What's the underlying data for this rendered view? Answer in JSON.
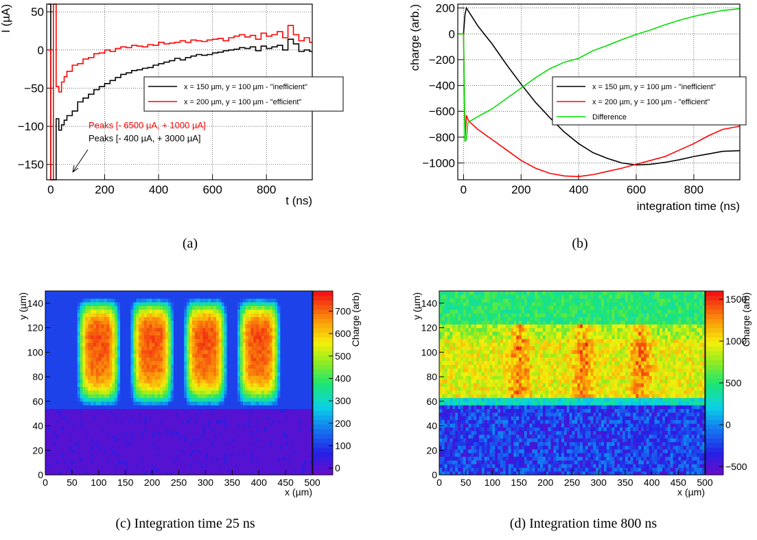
{
  "captions": {
    "a": "(a)",
    "b": "(b)",
    "c": "(c) Integration time 25 ns",
    "d": "(d) Integration time 800 ns"
  },
  "chart_data": [
    {
      "id": "a",
      "type": "line",
      "title": "",
      "xlabel": "t (ns)",
      "ylabel": "I (µA)",
      "xlim": [
        -15,
        970
      ],
      "ylim": [
        -170,
        60
      ],
      "xticks": [
        0,
        200,
        400,
        600,
        800
      ],
      "yticks": [
        -150,
        -100,
        -50,
        0,
        50
      ],
      "grid": true,
      "legend_position": "center-right",
      "series": [
        {
          "name": "x = 150 µm, y = 100 µm - \"inefficient\"",
          "color": "#000000",
          "step": true,
          "x": [
            -10,
            0,
            10,
            20,
            30,
            40,
            50,
            60,
            80,
            100,
            120,
            140,
            160,
            180,
            200,
            220,
            240,
            260,
            280,
            300,
            320,
            340,
            360,
            380,
            400,
            420,
            440,
            460,
            480,
            500,
            520,
            540,
            560,
            580,
            600,
            620,
            640,
            660,
            680,
            700,
            720,
            740,
            760,
            780,
            800,
            820,
            840,
            860,
            880,
            900,
            920,
            940,
            960
          ],
          "y": [
            60,
            -170,
            -170,
            -90,
            -105,
            -98,
            -92,
            -86,
            -80,
            -68,
            -63,
            -58,
            -52,
            -48,
            -44,
            -40,
            -36,
            -32,
            -30,
            -27,
            -26,
            -24,
            -23,
            -20,
            -18,
            -16,
            -14,
            -11,
            -13,
            -10,
            -8,
            -6,
            -7,
            -6,
            -4,
            -3,
            -1,
            0,
            1,
            3,
            2,
            4,
            -1,
            5,
            2,
            4,
            6,
            0,
            14,
            8,
            -2,
            0,
            -2
          ]
        },
        {
          "name": "x = 200 µm, y = 100 µm - \"efficient\"",
          "color": "#ff0000",
          "step": true,
          "x": [
            -10,
            0,
            10,
            20,
            30,
            40,
            50,
            60,
            80,
            100,
            120,
            140,
            160,
            180,
            200,
            220,
            240,
            260,
            280,
            300,
            320,
            340,
            360,
            380,
            400,
            420,
            440,
            460,
            480,
            500,
            520,
            540,
            560,
            580,
            600,
            620,
            640,
            660,
            680,
            700,
            720,
            740,
            760,
            780,
            800,
            820,
            840,
            860,
            880,
            900,
            920,
            940,
            960
          ],
          "y": [
            0,
            -170,
            60,
            -48,
            -55,
            -42,
            -35,
            -28,
            -20,
            -18,
            -12,
            -10,
            -5,
            -4,
            0,
            -2,
            2,
            4,
            3,
            6,
            5,
            4,
            7,
            6,
            10,
            8,
            9,
            10,
            12,
            10,
            13,
            12,
            11,
            13,
            14,
            15,
            12,
            16,
            18,
            20,
            17,
            19,
            14,
            22,
            18,
            20,
            24,
            16,
            32,
            20,
            12,
            16,
            10
          ]
        }
      ],
      "annotations": [
        {
          "text": "Peaks [- 6500 µA, + 1000 µA]",
          "color": "#ff0000"
        },
        {
          "text": "Peaks [- 400 µA, + 3000 µA]",
          "color": "#000000"
        }
      ]
    },
    {
      "id": "b",
      "type": "line",
      "title": "",
      "xlabel": "integration time (ns)",
      "ylabel": "charge (arb.)",
      "xlim": [
        -20,
        960
      ],
      "ylim": [
        -1130,
        230
      ],
      "xticks": [
        0,
        200,
        400,
        600,
        800
      ],
      "yticks": [
        -1000,
        -800,
        -600,
        -400,
        -200,
        0,
        200
      ],
      "grid": true,
      "legend_position": "center-right",
      "series": [
        {
          "name": "x = 150 µm, y = 100 µm - \"inefficient\"",
          "color": "#000000",
          "x": [
            -20,
            0,
            5,
            10,
            50,
            100,
            150,
            200,
            250,
            300,
            350,
            400,
            450,
            500,
            550,
            600,
            650,
            700,
            750,
            800,
            850,
            900,
            960
          ],
          "y": [
            0,
            0,
            150,
            200,
            60,
            -80,
            -240,
            -390,
            -530,
            -650,
            -760,
            -850,
            -920,
            -965,
            -1000,
            -1015,
            -1010,
            -995,
            -975,
            -950,
            -930,
            -910,
            -905
          ]
        },
        {
          "name": "x = 200 µm, y = 100 µm - \"efficient\"",
          "color": "#ff0000",
          "x": [
            -20,
            0,
            5,
            10,
            15,
            20,
            50,
            100,
            150,
            200,
            250,
            300,
            350,
            400,
            450,
            500,
            550,
            600,
            650,
            700,
            750,
            800,
            850,
            900,
            960
          ],
          "y": [
            0,
            0,
            -820,
            -630,
            -660,
            -680,
            -740,
            -820,
            -900,
            -980,
            -1040,
            -1080,
            -1100,
            -1105,
            -1090,
            -1065,
            -1040,
            -1010,
            -980,
            -950,
            -900,
            -850,
            -790,
            -740,
            -715
          ]
        },
        {
          "name": "Difference",
          "color": "#00dd00",
          "x": [
            -20,
            0,
            5,
            10,
            15,
            20,
            50,
            100,
            150,
            200,
            250,
            300,
            350,
            400,
            450,
            500,
            550,
            600,
            650,
            700,
            750,
            800,
            850,
            900,
            960
          ],
          "y": [
            0,
            0,
            -830,
            -820,
            -690,
            -680,
            -640,
            -580,
            -500,
            -420,
            -340,
            -270,
            -220,
            -190,
            -130,
            -90,
            -45,
            -5,
            30,
            70,
            105,
            135,
            160,
            180,
            195
          ]
        }
      ]
    },
    {
      "id": "c",
      "type": "heatmap",
      "title": "",
      "xlabel": "x (µm)",
      "ylabel": "y (µm)",
      "zlabel": "Charge (arb)",
      "xlim": [
        0,
        500
      ],
      "ylim": [
        0,
        150
      ],
      "zlim": [
        -30,
        790
      ],
      "xticks": [
        0,
        50,
        100,
        150,
        200,
        250,
        300,
        350,
        400,
        450,
        500
      ],
      "yticks": [
        0,
        20,
        40,
        60,
        80,
        100,
        120,
        140
      ],
      "zticks": [
        0,
        100,
        200,
        300,
        400,
        500,
        600,
        700
      ],
      "bins": [
        100,
        50
      ],
      "model": "four pixel-shaped islands of high charge (peak ~770) centred at x = 100, 200, 300, 400 µm spanning y ≈ 50–145 µm; uniform background ~0 below y = 55 µm and ~110 elsewhere",
      "pixel_centers": [
        100,
        200,
        300,
        400
      ],
      "peak": 770
    },
    {
      "id": "d",
      "type": "heatmap",
      "title": "",
      "xlabel": "x (µm)",
      "ylabel": "y (µm)",
      "zlabel": "Charge (arb)",
      "xlim": [
        0,
        500
      ],
      "ylim": [
        0,
        150
      ],
      "zlim": [
        -600,
        1600
      ],
      "xticks": [
        0,
        50,
        100,
        150,
        200,
        250,
        300,
        350,
        400,
        450,
        500
      ],
      "yticks": [
        0,
        20,
        40,
        60,
        80,
        100,
        120,
        140
      ],
      "zticks": [
        -500,
        0,
        500,
        1000,
        1500
      ],
      "bins": [
        100,
        50
      ],
      "model": "noisy map: low charge (~-200) below y = 55 µm; band y = 60–120 µm with ~950 and hotspots up to ~1400 at x ≈ 150, 270, 380 µm; top band ~500",
      "hotspots": [
        150,
        270,
        380
      ],
      "peak": 1400
    }
  ]
}
